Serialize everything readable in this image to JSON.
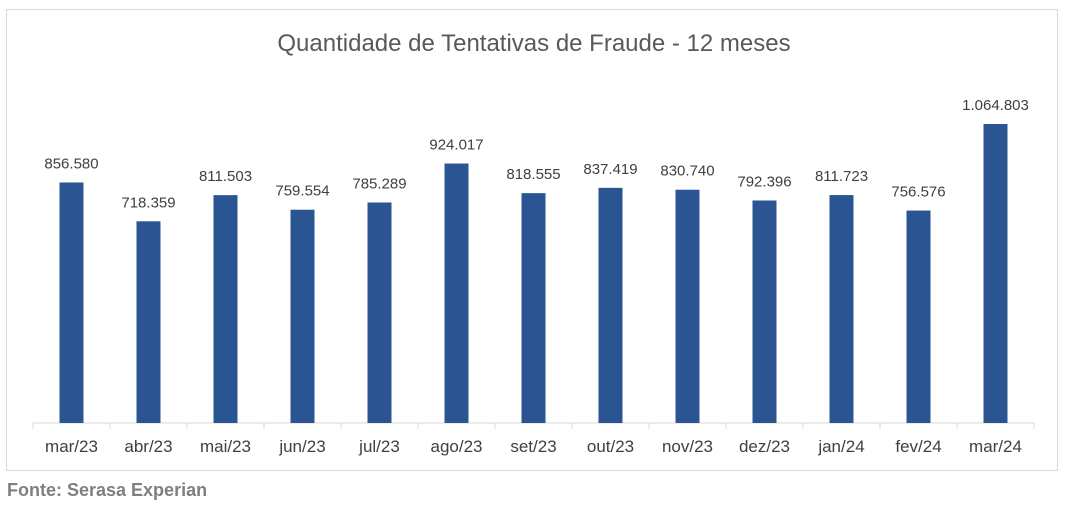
{
  "chart_data": {
    "type": "bar",
    "title": "Quantidade de Tentativas de Fraude - 12 meses",
    "categories": [
      "mar/23",
      "abr/23",
      "mai/23",
      "jun/23",
      "jul/23",
      "ago/23",
      "set/23",
      "out/23",
      "nov/23",
      "dez/23",
      "jan/24",
      "fev/24",
      "mar/24"
    ],
    "values": [
      856580,
      718359,
      811503,
      759554,
      785289,
      924017,
      818555,
      837419,
      830740,
      792396,
      811723,
      756576,
      1064803
    ],
    "value_labels": [
      "856.580",
      "718.359",
      "811.503",
      "759.554",
      "785.289",
      "924.017",
      "818.555",
      "837.419",
      "830.740",
      "792.396",
      "811.723",
      "756.576",
      "1.064.803"
    ],
    "xlabel": "",
    "ylabel": "",
    "grid": false,
    "legend": "none",
    "bar_color": "#2a5592"
  },
  "source": "Fonte: Serasa Experian"
}
